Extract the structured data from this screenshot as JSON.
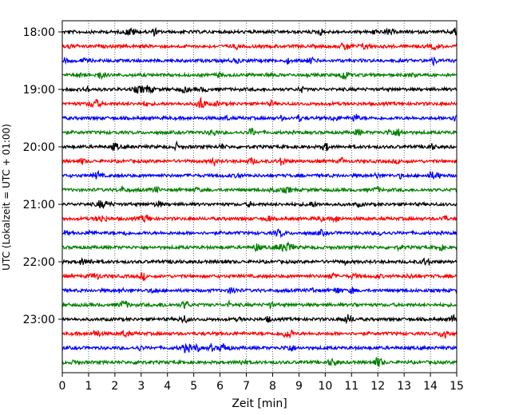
{
  "chart_data": {
    "type": "line",
    "xlabel": "Zeit  [min]",
    "ylabel": "UTC (Lokalzeit = UTC + 01:00)",
    "xlim": [
      0,
      15
    ],
    "x_ticks": [
      0,
      1,
      2,
      3,
      4,
      5,
      6,
      7,
      8,
      9,
      10,
      11,
      12,
      13,
      14,
      15
    ],
    "y_ticks": [
      "18:00",
      "19:00",
      "20:00",
      "21:00",
      "22:00",
      "23:00"
    ],
    "grid": {
      "x": true,
      "y": false
    },
    "series_colors": [
      "#000000",
      "#ff0000",
      "#0000ff",
      "#008000"
    ],
    "traces": [
      {
        "start": "18:00",
        "color": "#000000"
      },
      {
        "start": "18:15",
        "color": "#ff0000"
      },
      {
        "start": "18:30",
        "color": "#0000ff"
      },
      {
        "start": "18:45",
        "color": "#008000"
      },
      {
        "start": "19:00",
        "color": "#000000"
      },
      {
        "start": "19:15",
        "color": "#ff0000"
      },
      {
        "start": "19:30",
        "color": "#0000ff"
      },
      {
        "start": "19:45",
        "color": "#008000"
      },
      {
        "start": "20:00",
        "color": "#000000"
      },
      {
        "start": "20:15",
        "color": "#ff0000"
      },
      {
        "start": "20:30",
        "color": "#0000ff"
      },
      {
        "start": "20:45",
        "color": "#008000"
      },
      {
        "start": "21:00",
        "color": "#000000"
      },
      {
        "start": "21:15",
        "color": "#ff0000"
      },
      {
        "start": "21:30",
        "color": "#0000ff"
      },
      {
        "start": "21:45",
        "color": "#008000"
      },
      {
        "start": "22:00",
        "color": "#000000"
      },
      {
        "start": "22:15",
        "color": "#ff0000"
      },
      {
        "start": "22:30",
        "color": "#0000ff"
      },
      {
        "start": "22:45",
        "color": "#008000"
      },
      {
        "start": "23:00",
        "color": "#000000"
      },
      {
        "start": "23:15",
        "color": "#ff0000"
      },
      {
        "start": "23:30",
        "color": "#0000ff"
      },
      {
        "start": "23:45",
        "color": "#008000"
      }
    ]
  }
}
